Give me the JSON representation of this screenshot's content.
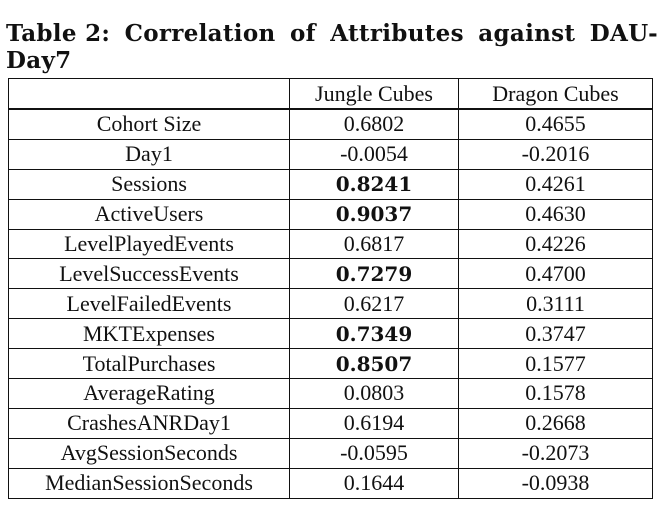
{
  "caption": {
    "label": "Table 2:",
    "title_line1_words": [
      "Correlation",
      "of",
      "Attributes",
      "against",
      "DAU-"
    ],
    "title_line2": "Day7"
  },
  "table": {
    "columns": [
      "",
      "Jungle Cubes",
      "Dragon Cubes"
    ],
    "rows": [
      {
        "attribute": "Cohort Size",
        "jungle": "0.6802",
        "dragon": "0.4655",
        "jungle_bold": false
      },
      {
        "attribute": "Day1",
        "jungle": "-0.0054",
        "dragon": "-0.2016",
        "jungle_bold": false
      },
      {
        "attribute": "Sessions",
        "jungle": "0.8241",
        "dragon": "0.4261",
        "jungle_bold": true
      },
      {
        "attribute": "ActiveUsers",
        "jungle": "0.9037",
        "dragon": "0.4630",
        "jungle_bold": true
      },
      {
        "attribute": "LevelPlayedEvents",
        "jungle": "0.6817",
        "dragon": "0.4226",
        "jungle_bold": false
      },
      {
        "attribute": "LevelSuccessEvents",
        "jungle": "0.7279",
        "dragon": "0.4700",
        "jungle_bold": true
      },
      {
        "attribute": "LevelFailedEvents",
        "jungle": "0.6217",
        "dragon": "0.3111",
        "jungle_bold": false
      },
      {
        "attribute": "MKTExpenses",
        "jungle": "0.7349",
        "dragon": "0.3747",
        "jungle_bold": true
      },
      {
        "attribute": "TotalPurchases",
        "jungle": "0.8507",
        "dragon": "0.1577",
        "jungle_bold": true
      },
      {
        "attribute": "AverageRating",
        "jungle": "0.0803",
        "dragon": "0.1578",
        "jungle_bold": false
      },
      {
        "attribute": "CrashesANRDay1",
        "jungle": "0.6194",
        "dragon": "0.2668",
        "jungle_bold": false
      },
      {
        "attribute": "AvgSessionSeconds",
        "jungle": "-0.0595",
        "dragon": "-0.2073",
        "jungle_bold": false
      },
      {
        "attribute": "MedianSessionSeconds",
        "jungle": "0.1644",
        "dragon": "-0.0938",
        "jungle_bold": false
      }
    ]
  }
}
